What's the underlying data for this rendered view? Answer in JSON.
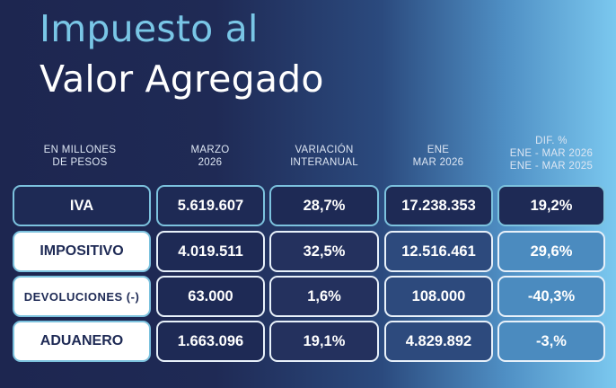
{
  "title": {
    "line1": "Impuesto al",
    "line2": "Valor Agregado"
  },
  "headers": {
    "label": [
      "EN MILLONES",
      "DE PESOS"
    ],
    "col1": [
      "MARZO",
      "2026"
    ],
    "col2": [
      "VARIACIÓN",
      "INTERANUAL"
    ],
    "col3": [
      "ENE",
      "MAR 2026"
    ],
    "col4": [
      "DIF. %",
      "ENE - MAR 2026",
      "ENE - MAR 2025"
    ]
  },
  "rows": [
    {
      "label": "IVA",
      "marzo": "5.619.607",
      "var": "28,7%",
      "ene_mar": "17.238.353",
      "dif": "19,2%"
    },
    {
      "label": "IMPOSITIVO",
      "marzo": "4.019.511",
      "var": "32,5%",
      "ene_mar": "12.516.461",
      "dif": "29,6%"
    },
    {
      "label": "DEVOLUCIONES (-)",
      "marzo": "63.000",
      "var": "1,6%",
      "ene_mar": "108.000",
      "dif": "-40,3%"
    },
    {
      "label": "ADUANERO",
      "marzo": "1.663.096",
      "var": "19,1%",
      "ene_mar": "4.829.892",
      "dif": "-3,%"
    }
  ],
  "colors": {
    "navy": "#1e2a55",
    "accent_cyan": "#79c6e6",
    "white": "#ffffff"
  }
}
